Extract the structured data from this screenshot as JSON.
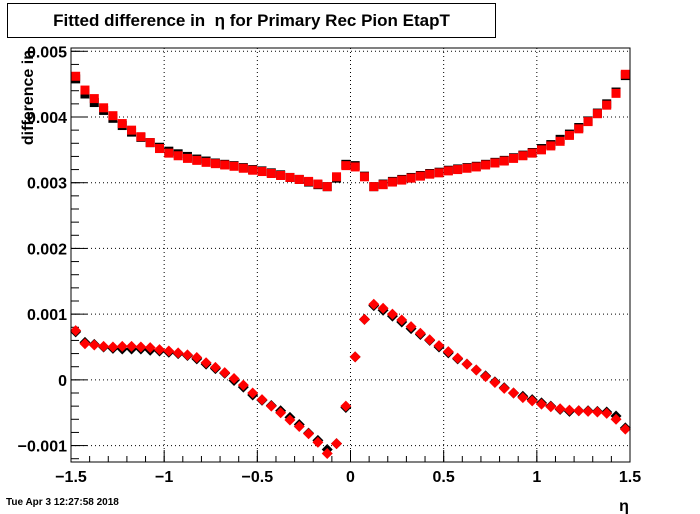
{
  "title": "Fitted difference in  η for Primary Rec Pion EtapT",
  "timestamp": "Tue Apr  3 12:27:58 2018",
  "chart_data": {
    "type": "scatter",
    "title": "Fitted difference in  η for Primary Rec Pion EtapT",
    "xlabel": "η",
    "ylabel": "difference in",
    "xlim": [
      -1.5,
      1.5
    ],
    "ylim": [
      -0.00125,
      0.00505
    ],
    "grid": true,
    "x_ticks": [
      {
        "value": -1.5,
        "label": "−1.5"
      },
      {
        "value": -1.0,
        "label": "−1"
      },
      {
        "value": -0.5,
        "label": "−0.5"
      },
      {
        "value": 0.0,
        "label": "0"
      },
      {
        "value": 0.5,
        "label": "0.5"
      },
      {
        "value": 1.0,
        "label": "1"
      },
      {
        "value": 1.5,
        "label": "1.5"
      }
    ],
    "y_ticks": [
      {
        "value": -0.001,
        "label": "−0.001"
      },
      {
        "value": 0.0,
        "label": "0"
      },
      {
        "value": 0.001,
        "label": "0.001"
      },
      {
        "value": 0.002,
        "label": "0.002"
      },
      {
        "value": 0.003,
        "label": "0.003"
      },
      {
        "value": 0.004,
        "label": "0.004"
      },
      {
        "value": 0.005,
        "label": "0.005"
      }
    ],
    "x": [
      -1.475,
      -1.425,
      -1.375,
      -1.325,
      -1.275,
      -1.225,
      -1.175,
      -1.125,
      -1.075,
      -1.025,
      -0.975,
      -0.925,
      -0.875,
      -0.825,
      -0.775,
      -0.725,
      -0.675,
      -0.625,
      -0.575,
      -0.525,
      -0.475,
      -0.425,
      -0.375,
      -0.325,
      -0.275,
      -0.225,
      -0.175,
      -0.125,
      -0.075,
      -0.025,
      0.025,
      0.075,
      0.125,
      0.175,
      0.225,
      0.275,
      0.325,
      0.375,
      0.425,
      0.475,
      0.525,
      0.575,
      0.625,
      0.675,
      0.725,
      0.775,
      0.825,
      0.875,
      0.925,
      0.975,
      1.025,
      1.075,
      1.125,
      1.175,
      1.225,
      1.275,
      1.325,
      1.375,
      1.425,
      1.475
    ],
    "series": [
      {
        "marker": "square",
        "color": "#000000",
        "values": [
          0.00458,
          0.00435,
          0.00422,
          0.0041,
          0.00398,
          0.00387,
          0.00377,
          0.00369,
          0.00361,
          0.00354,
          0.00348,
          0.00344,
          0.0034,
          0.00336,
          0.00333,
          0.0033,
          0.00328,
          0.00326,
          0.00323,
          0.0032,
          0.00318,
          0.00315,
          0.00312,
          0.00308,
          0.00305,
          0.00301,
          0.00297,
          0.00294,
          0.00307,
          0.00328,
          0.00326,
          0.0031,
          0.00294,
          0.00298,
          0.00302,
          0.00305,
          0.00308,
          0.00311,
          0.00314,
          0.00316,
          0.00319,
          0.00321,
          0.00323,
          0.00325,
          0.00328,
          0.00331,
          0.00334,
          0.00338,
          0.00342,
          0.00346,
          0.00352,
          0.00358,
          0.00366,
          0.00374,
          0.00384,
          0.00394,
          0.00406,
          0.0042,
          0.00438,
          0.00463
        ]
      },
      {
        "marker": "square",
        "color": "#ff0000",
        "values": [
          0.00462,
          0.00441,
          0.00428,
          0.00414,
          0.00402,
          0.0039,
          0.0038,
          0.0037,
          0.00361,
          0.00352,
          0.00345,
          0.00341,
          0.00337,
          0.00334,
          0.00331,
          0.00329,
          0.00327,
          0.00325,
          0.00322,
          0.00319,
          0.00317,
          0.00314,
          0.00311,
          0.00308,
          0.00305,
          0.00302,
          0.00298,
          0.00294,
          0.00309,
          0.00326,
          0.00324,
          0.00309,
          0.00294,
          0.00297,
          0.00301,
          0.00304,
          0.00307,
          0.0031,
          0.00313,
          0.00315,
          0.00318,
          0.0032,
          0.00322,
          0.00324,
          0.00327,
          0.0033,
          0.00333,
          0.00337,
          0.00341,
          0.00345,
          0.0035,
          0.00356,
          0.00363,
          0.00372,
          0.00382,
          0.00393,
          0.00405,
          0.00418,
          0.00436,
          0.00465
        ]
      },
      {
        "marker": "diamond",
        "color": "#000000",
        "values": [
          0.00073,
          0.00057,
          0.00054,
          0.0005,
          0.00048,
          0.00047,
          0.00047,
          0.00047,
          0.00045,
          0.00044,
          0.00042,
          0.0004,
          0.00037,
          0.00032,
          0.00024,
          0.00017,
          0.0001,
          -1e-05,
          -0.00011,
          -0.00023,
          -0.00031,
          -0.00039,
          -0.00047,
          -0.00057,
          -0.00068,
          -0.00081,
          -0.00092,
          -0.00106,
          -0.00097,
          -0.00042,
          0.00035,
          0.00092,
          0.00113,
          0.00106,
          0.00097,
          0.00088,
          0.00078,
          0.00069,
          0.0006,
          0.0005,
          0.00041,
          0.00032,
          0.00024,
          0.00015,
          6e-05,
          -3e-05,
          -0.00012,
          -0.0002,
          -0.00025,
          -0.0003,
          -0.00035,
          -0.0004,
          -0.00045,
          -0.00048,
          -0.00047,
          -0.00047,
          -0.00048,
          -0.00049,
          -0.00055,
          -0.00073
        ]
      },
      {
        "marker": "diamond",
        "color": "#ff0000",
        "values": [
          0.00075,
          0.00055,
          0.00053,
          0.00051,
          0.0005,
          0.00051,
          0.00051,
          0.0005,
          0.00049,
          0.00046,
          0.00044,
          0.00041,
          0.00038,
          0.00034,
          0.00026,
          0.00019,
          0.00011,
          2e-05,
          -8e-05,
          -0.0002,
          -0.0003,
          -0.0004,
          -0.0005,
          -0.00061,
          -0.00071,
          -0.00082,
          -0.00095,
          -0.00112,
          -0.00097,
          -0.0004,
          0.00035,
          0.00092,
          0.00115,
          0.00109,
          0.001,
          0.00091,
          0.00081,
          0.00071,
          0.00061,
          0.00052,
          0.00043,
          0.00033,
          0.00024,
          0.00015,
          5e-05,
          -4e-05,
          -0.00013,
          -0.0002,
          -0.00027,
          -0.00032,
          -0.00037,
          -0.00041,
          -0.00044,
          -0.00046,
          -0.00047,
          -0.00048,
          -0.00049,
          -0.00051,
          -0.0006,
          -0.00075
        ]
      }
    ]
  }
}
